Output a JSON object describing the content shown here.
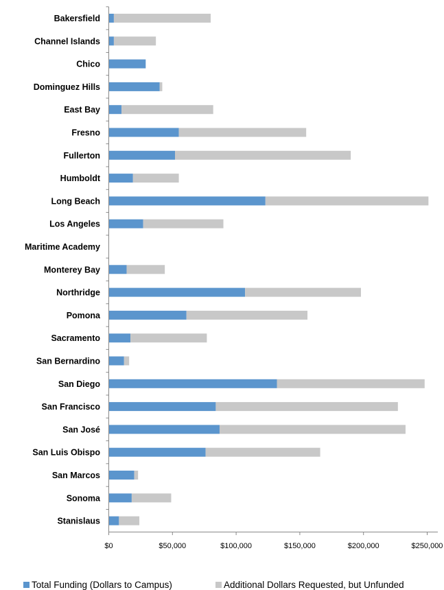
{
  "chart_data": {
    "type": "bar",
    "orientation": "horizontal",
    "stacked": true,
    "categories": [
      "Bakersfield",
      "Channel Islands",
      "Chico",
      "Dominguez Hills",
      "East Bay",
      "Fresno",
      "Fullerton",
      "Humboldt",
      "Long Beach",
      "Los Angeles",
      "Maritime Academy",
      "Monterey Bay",
      "Northridge",
      "Pomona",
      "Sacramento",
      "San Bernardino",
      "San Diego",
      "San Francisco",
      "San José",
      "San Luis Obispo",
      "San Marcos",
      "Sonoma",
      "Stanislaus"
    ],
    "series": [
      {
        "name": "Total Funding (Dollars to Campus)",
        "color": "#5b95cd",
        "values": [
          4000,
          4000,
          29000,
          40000,
          10000,
          55000,
          52000,
          19000,
          123000,
          27000,
          0,
          14000,
          107000,
          61000,
          17000,
          12000,
          132000,
          84000,
          87000,
          76000,
          20000,
          18000,
          8000
        ]
      },
      {
        "name": "Additional Dollars Requested, but Unfunded",
        "color": "#c8c8c8",
        "values": [
          76000,
          33000,
          0,
          2000,
          72000,
          100000,
          138000,
          36000,
          128000,
          63000,
          0,
          30000,
          91000,
          95000,
          60000,
          4000,
          116000,
          143000,
          146000,
          90000,
          3000,
          31000,
          16000
        ]
      }
    ],
    "x_ticks": [
      "$0",
      "$50,000",
      "$100,000",
      "$150,000",
      "$200,000",
      "$250,000"
    ],
    "xlim": [
      0,
      250000
    ],
    "grid": false,
    "legend_position": "bottom"
  }
}
